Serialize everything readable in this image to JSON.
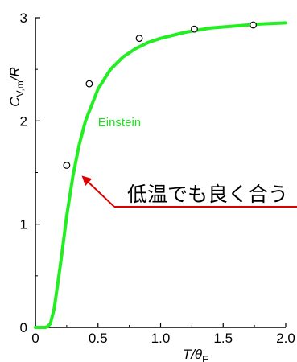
{
  "chart_data": {
    "type": "line",
    "xlabel": "T/θE",
    "ylabel": "CV,m/R",
    "xlim": [
      0,
      2.0
    ],
    "ylim": [
      0,
      3
    ],
    "x_ticks": [
      "0",
      "0.5",
      "1.0",
      "1.5",
      "2.0"
    ],
    "y_ticks": [
      "0",
      "1",
      "2",
      "3"
    ],
    "grid": false,
    "series": [
      {
        "name": "Einstein",
        "kind": "line",
        "color": "#22ee22",
        "x": [
          0.0,
          0.05,
          0.08,
          0.1,
          0.12,
          0.15,
          0.2,
          0.25,
          0.3,
          0.35,
          0.4,
          0.5,
          0.6,
          0.7,
          0.8,
          0.9,
          1.0,
          1.2,
          1.4,
          1.6,
          1.8,
          2.0
        ],
        "y": [
          0.0,
          0.0,
          0.0,
          0.01,
          0.04,
          0.18,
          0.61,
          1.08,
          1.47,
          1.77,
          2.0,
          2.31,
          2.5,
          2.62,
          2.7,
          2.76,
          2.8,
          2.86,
          2.9,
          2.92,
          2.94,
          2.95
        ]
      },
      {
        "kind": "scatter",
        "color": "#000000",
        "x": [
          0.25,
          0.43,
          0.83,
          1.27,
          1.74
        ],
        "y": [
          1.57,
          2.36,
          2.8,
          2.89,
          2.93
        ]
      }
    ],
    "annotation": {
      "text": "低温でも良く合う",
      "color": "#dd0000"
    }
  }
}
